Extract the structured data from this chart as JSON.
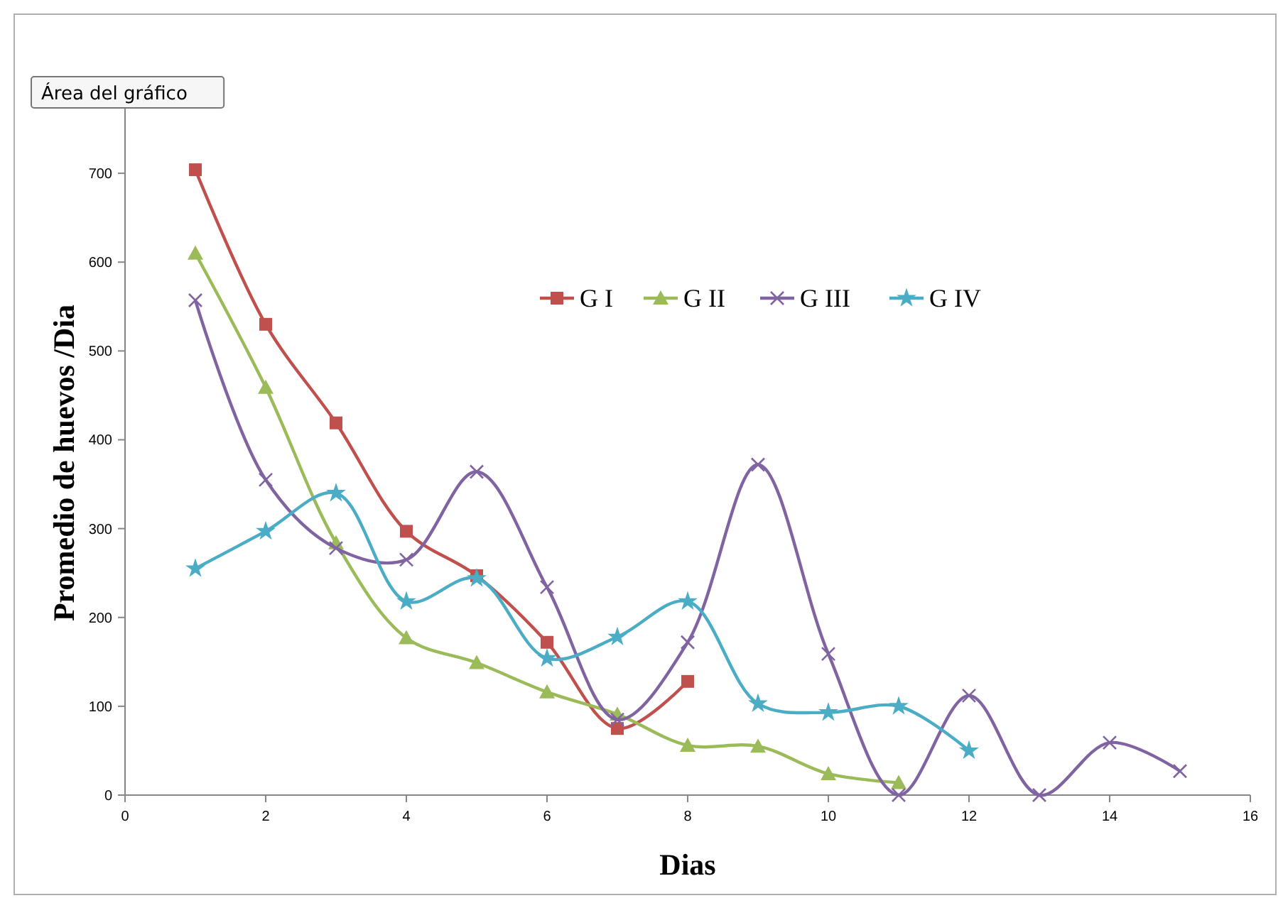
{
  "chart_data": {
    "type": "line",
    "xlabel": "Dias",
    "ylabel": "Promedio de huevos /Dia",
    "annotations": [
      "Área del gráfico"
    ],
    "xlim": [
      0,
      16
    ],
    "xticks": [
      0,
      2,
      4,
      6,
      8,
      10,
      12,
      14,
      16
    ],
    "ylim": [
      0,
      780
    ],
    "yticks": [
      0,
      100,
      200,
      300,
      400,
      500,
      600,
      700
    ],
    "grid": false,
    "legend": "top right",
    "line_style": "solid",
    "series": [
      {
        "name": "G I",
        "color": "#c0504d",
        "marker": "square",
        "x": [
          1,
          2,
          3,
          4,
          5,
          6,
          7,
          8
        ],
        "values": [
          704,
          530,
          419,
          297,
          247,
          172,
          75,
          128
        ]
      },
      {
        "name": "G II",
        "color": "#9bbb59",
        "marker": "triangle",
        "x": [
          1,
          2,
          3,
          4,
          5,
          6,
          7,
          8,
          9,
          10,
          11
        ],
        "values": [
          610,
          459,
          284,
          177,
          149,
          116,
          91,
          56,
          55,
          24,
          14
        ]
      },
      {
        "name": "G III",
        "color": "#8064a2",
        "marker": "cross",
        "x": [
          1,
          2,
          3,
          4,
          5,
          6,
          7,
          8,
          9,
          10,
          11,
          12,
          13,
          14,
          15
        ],
        "values": [
          557,
          355,
          278,
          265,
          364,
          234,
          85,
          172,
          372,
          159,
          0,
          112,
          0,
          59,
          27
        ]
      },
      {
        "name": "G IV",
        "color": "#4bacc6",
        "marker": "star",
        "x": [
          1,
          2,
          3,
          4,
          5,
          6,
          7,
          8,
          9,
          10,
          11,
          12
        ],
        "values": [
          255,
          297,
          340,
          218,
          244,
          154,
          178,
          218,
          103,
          93,
          100,
          50
        ]
      }
    ]
  }
}
